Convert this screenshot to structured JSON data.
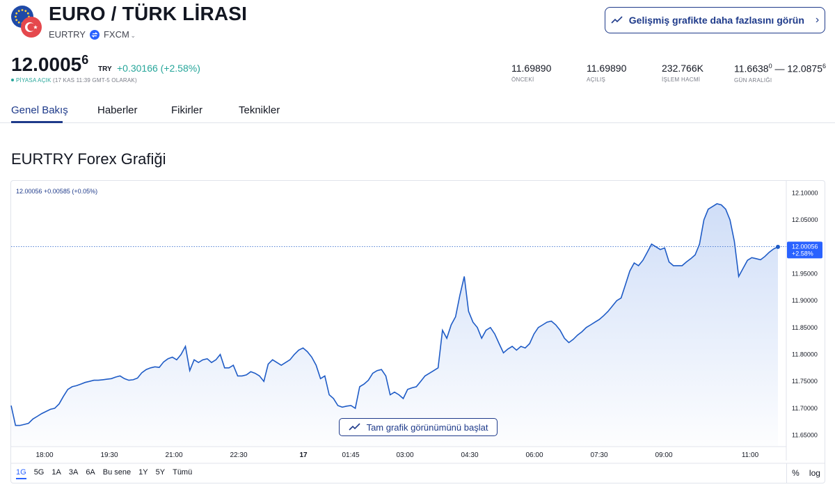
{
  "header": {
    "title": "EURO / TÜRK LİRASI",
    "symbol": "EURTRY",
    "exchange": "FXCM",
    "advanced_button": "Gelişmiş grafikte daha fazlasını görün"
  },
  "quote": {
    "price_main": "12.0005",
    "price_sup": "6",
    "currency": "TRY",
    "change": "+0.30166 (+2.58%)",
    "market_state": "PİYASA AÇIK",
    "market_time": "(17 KAS 11:39 GMT-5 OLARAK)"
  },
  "stats": [
    {
      "value": "11.69890",
      "label": "ÖNCEKİ"
    },
    {
      "value": "11.69890",
      "label": "AÇILIŞ"
    },
    {
      "value": "232.766K",
      "label": "İŞLEM HACMİ"
    },
    {
      "low_main": "11.6638",
      "low_sup": "0",
      "dash": " — ",
      "high_main": "12.0875",
      "high_sup": "6",
      "label": "GÜN ARALIĞI"
    }
  ],
  "tabs": [
    "Genel Bakış",
    "Haberler",
    "Fikirler",
    "Teknikler"
  ],
  "section_title": "EURTRY Forex Grafiği",
  "chart_legend": "12.00056  +0.00585 (+0.05%)",
  "full_chart_button": "Tam grafik görünümünü başlat",
  "ranges": [
    "1G",
    "5G",
    "1A",
    "3A",
    "6A",
    "Bu sene",
    "1Y",
    "5Y",
    "Tümü"
  ],
  "tools": [
    "%",
    "log"
  ],
  "colors": {
    "line": "#1e5bc6",
    "accent": "#1e3a8a",
    "up": "#26a69a",
    "fill_top": "#cddcf7"
  },
  "chart_data": {
    "type": "area",
    "x_ticks": [
      "18:00",
      "19:30",
      "21:00",
      "22:30",
      "17",
      "01:45",
      "03:00",
      "04:30",
      "06:00",
      "07:30",
      "09:00",
      "11:00"
    ],
    "y_ticks": [
      "12.10000",
      "12.05000",
      "12.00000",
      "11.95000",
      "11.90000",
      "11.85000",
      "11.80000",
      "11.75000",
      "11.70000",
      "11.65000"
    ],
    "ylim": [
      11.63,
      12.12
    ],
    "last_price": "12.00056",
    "last_change": "+2.58%",
    "series": [
      {
        "values": [
          11.705,
          11.668,
          11.668,
          11.67,
          11.672,
          11.68,
          11.685,
          11.69,
          11.694,
          11.698,
          11.7,
          11.708,
          11.722,
          11.735,
          11.74,
          11.742,
          11.745,
          11.748,
          11.75,
          11.752,
          11.752,
          11.753,
          11.754,
          11.755,
          11.758,
          11.76,
          11.755,
          11.752,
          11.753,
          11.756,
          11.766,
          11.772,
          11.775,
          11.777,
          11.776,
          11.786,
          11.792,
          11.795,
          11.79,
          11.8,
          11.815,
          11.77,
          11.79,
          11.785,
          11.79,
          11.792,
          11.785,
          11.79,
          11.8,
          11.775,
          11.775,
          11.78,
          11.76,
          11.76,
          11.762,
          11.768,
          11.765,
          11.76,
          11.75,
          11.782,
          11.79,
          11.785,
          11.78,
          11.785,
          11.79,
          11.8,
          11.808,
          11.812,
          11.805,
          11.795,
          11.78,
          11.755,
          11.76,
          11.725,
          11.718,
          11.705,
          11.702,
          11.704,
          11.705,
          11.7,
          11.74,
          11.745,
          11.752,
          11.765,
          11.77,
          11.772,
          11.76,
          11.725,
          11.73,
          11.725,
          11.718,
          11.735,
          11.738,
          11.74,
          11.75,
          11.76,
          11.765,
          11.77,
          11.775,
          11.845,
          11.83,
          11.855,
          11.87,
          11.91,
          11.945,
          11.88,
          11.86,
          11.85,
          11.83,
          11.845,
          11.85,
          11.838,
          11.82,
          11.803,
          11.81,
          11.815,
          11.808,
          11.815,
          11.812,
          11.82,
          11.838,
          11.85,
          11.855,
          11.86,
          11.862,
          11.855,
          11.845,
          11.83,
          11.822,
          11.828,
          11.836,
          11.842,
          11.85,
          11.855,
          11.86,
          11.865,
          11.872,
          11.88,
          11.89,
          11.9,
          11.905,
          11.93,
          11.955,
          11.97,
          11.965,
          11.975,
          11.99,
          12.005,
          12.0,
          11.995,
          11.998,
          11.972,
          11.965,
          11.965,
          11.965,
          11.972,
          11.978,
          11.985,
          12.005,
          12.05,
          12.07,
          12.075,
          12.08,
          12.078,
          12.07,
          12.05,
          12.01,
          11.945,
          11.96,
          11.975,
          11.98,
          11.978,
          11.976,
          11.982,
          11.99,
          11.996,
          12.0
        ]
      }
    ]
  }
}
